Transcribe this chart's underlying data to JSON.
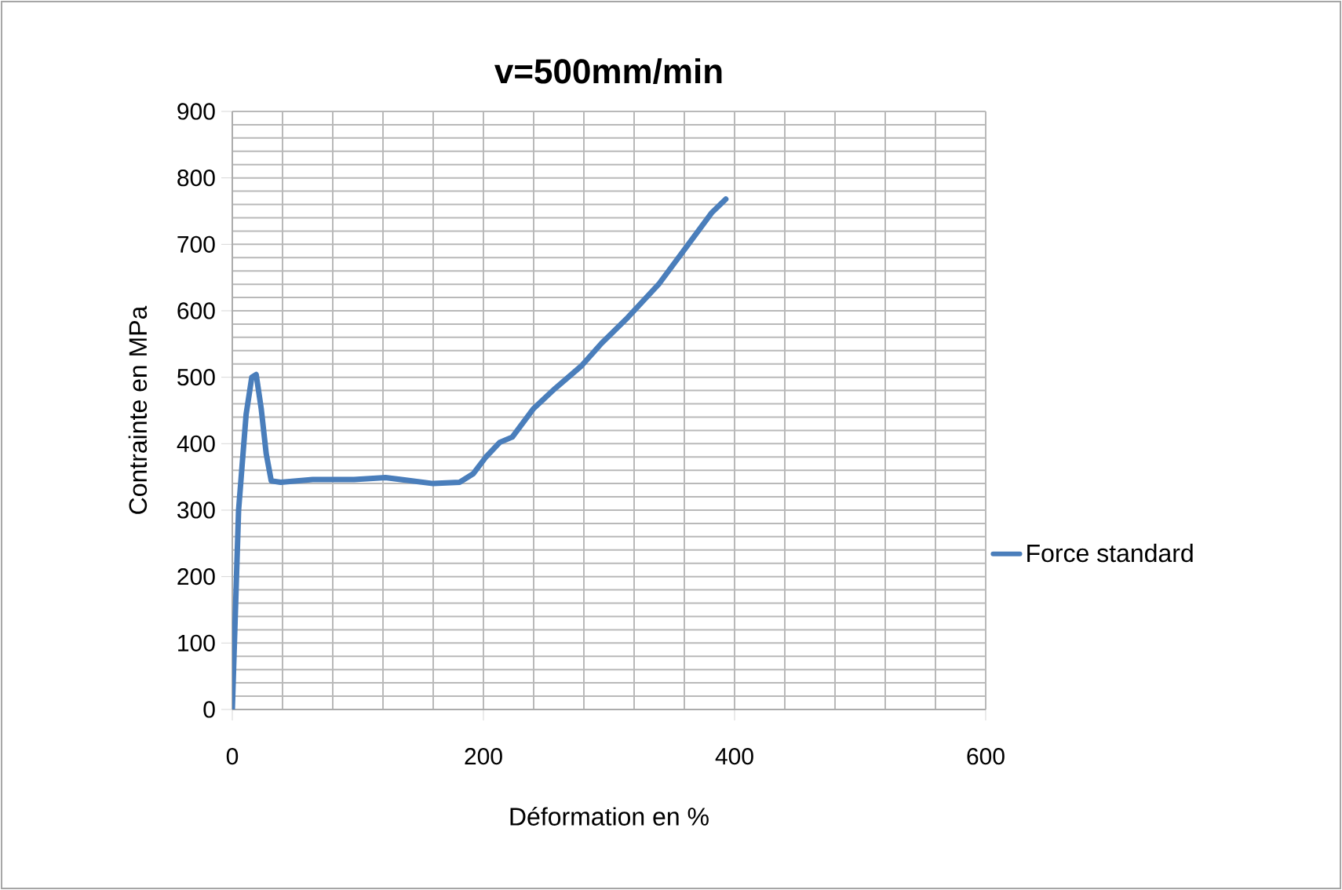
{
  "chart_data": {
    "type": "line",
    "title": "v=500mm/min",
    "xlabel": "Déformation en %",
    "ylabel": "Contrainte en MPa",
    "xlim": [
      0,
      600
    ],
    "ylim": [
      0,
      900
    ],
    "xticks": [
      0,
      200,
      400,
      600
    ],
    "yticks": [
      0,
      100,
      200,
      300,
      400,
      500,
      600,
      700,
      800,
      900
    ],
    "grid": true,
    "legend": "right",
    "marker": "none",
    "line_style": "solid",
    "series": [
      {
        "name": "Force standard",
        "color": "#4a7ebb",
        "x": [
          0,
          5,
          11,
          15.5,
          19,
          23,
          27,
          31,
          38.6,
          64,
          97,
          122,
          160,
          181,
          192,
          202,
          213,
          223,
          240,
          257,
          278,
          294,
          315,
          340,
          362,
          382,
          393
        ],
        "values": [
          0,
          300,
          444,
          500,
          504,
          453,
          385,
          344,
          342,
          346,
          346,
          349,
          340,
          342,
          355,
          380,
          402,
          410,
          453,
          483,
          517,
          551,
          590,
          641,
          697,
          748,
          768
        ]
      }
    ]
  }
}
